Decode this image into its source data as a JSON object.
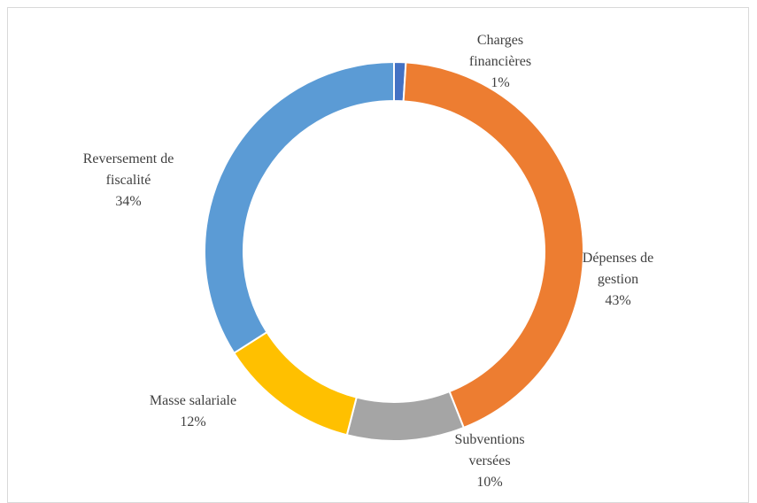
{
  "chart_data": {
    "type": "donut",
    "categories": [
      "Charges financières",
      "Dépenses de gestion",
      "Subventions versées",
      "Masse salariale",
      "Reversement de fiscalité"
    ],
    "values": [
      1,
      43,
      10,
      12,
      34
    ],
    "value_labels": [
      "1%",
      "43%",
      "10%",
      "12%",
      "34%"
    ],
    "colors": [
      "#4472c4",
      "#ed7d31",
      "#a5a5a5",
      "#ffc000",
      "#5b9bd5"
    ]
  }
}
